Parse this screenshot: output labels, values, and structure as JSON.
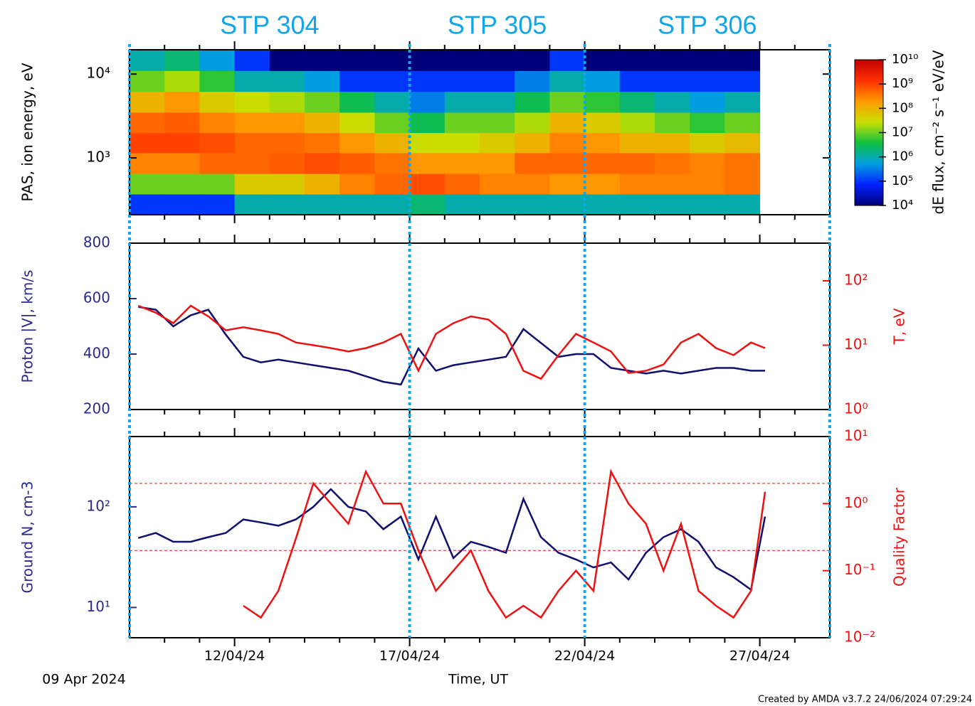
{
  "time_axis": {
    "label": "Time, UT",
    "start_label": "09 Apr 2024",
    "xlim": [
      0,
      20
    ],
    "xticks": [
      {
        "value": 3,
        "label": "12/04/24"
      },
      {
        "value": 8,
        "label": "17/04/24"
      },
      {
        "value": 13,
        "label": "22/04/24"
      },
      {
        "value": 18,
        "label": "27/04/24"
      }
    ],
    "minor_xticks": [
      1,
      2,
      4,
      5,
      6,
      7,
      9,
      10,
      11,
      12,
      14,
      15,
      16,
      17,
      19
    ]
  },
  "intervals": [
    {
      "label": "STP 304",
      "start": 0,
      "end": 8
    },
    {
      "label": "STP 305",
      "start": 8,
      "end": 13
    },
    {
      "label": "STP 306",
      "start": 13,
      "end": 20
    }
  ],
  "interval_color": "#12a5e8",
  "footer": "Created by AMDA v3.7.2 24/06/2024 07:29:24",
  "chart_data": [
    {
      "type": "heatmap",
      "y_label": "PAS, ion energy, eV",
      "yscale": "log",
      "ylim": [
        210,
        19500
      ],
      "yticks": [
        {
          "value": 1000,
          "label": "10³"
        },
        {
          "value": 10000,
          "label": "10⁴"
        }
      ],
      "time_bins": [
        0,
        1,
        2,
        3,
        4,
        5,
        6,
        7,
        8,
        9,
        10,
        11,
        12,
        13,
        14,
        15,
        16,
        17,
        18
      ],
      "energy_bins": [
        210,
        370,
        650,
        1150,
        2000,
        3500,
        6200,
        11000,
        19500
      ],
      "values": [
        [
          100000.0,
          10000000.0,
          300000000.0,
          1000000000.0,
          500000000.0,
          100000000.0,
          10000000.0,
          1000000.0
        ],
        [
          100000.0,
          10000000.0,
          300000000.0,
          1000000000.0,
          600000000.0,
          200000000.0,
          20000000.0,
          2000000.0
        ],
        [
          100000.0,
          10000000.0,
          500000000.0,
          800000000.0,
          300000000.0,
          50000000.0,
          5000000.0,
          500000.0
        ],
        [
          1000000.0,
          50000000.0,
          500000000.0,
          500000000.0,
          200000000.0,
          30000000.0,
          1000000.0,
          100000.0
        ],
        [
          1000000.0,
          50000000.0,
          600000000.0,
          500000000.0,
          200000000.0,
          20000000.0,
          1000000.0,
          10000.0
        ],
        [
          1000000.0,
          100000000.0,
          800000000.0,
          400000000.0,
          100000000.0,
          10000000.0,
          500000.0,
          10000.0
        ],
        [
          1000000.0,
          300000000.0,
          600000000.0,
          200000000.0,
          30000000.0,
          3000000.0,
          100000.0,
          10000.0
        ],
        [
          1000000.0,
          500000000.0,
          400000000.0,
          100000000.0,
          10000000.0,
          1000000.0,
          100000.0,
          10000.0
        ],
        [
          2000000.0,
          800000000.0,
          200000000.0,
          30000000.0,
          3000000.0,
          300000.0,
          100000.0,
          10000.0
        ],
        [
          1000000.0,
          500000000.0,
          200000000.0,
          30000000.0,
          10000000.0,
          1000000.0,
          100000.0,
          10000.0
        ],
        [
          1000000.0,
          300000000.0,
          200000000.0,
          50000000.0,
          10000000.0,
          1000000.0,
          100000.0,
          10000.0
        ],
        [
          1000000.0,
          300000000.0,
          500000000.0,
          100000000.0,
          20000000.0,
          3000000.0,
          300000.0,
          10000.0
        ],
        [
          1000000.0,
          200000000.0,
          500000000.0,
          300000000.0,
          100000000.0,
          10000000.0,
          1000000.0,
          100000.0
        ],
        [
          1000000.0,
          200000000.0,
          500000000.0,
          200000000.0,
          50000000.0,
          5000000.0,
          500000.0,
          10000.0
        ],
        [
          1000000.0,
          300000000.0,
          500000000.0,
          100000000.0,
          20000000.0,
          2000000.0,
          100000.0,
          10000.0
        ],
        [
          1000000.0,
          300000000.0,
          400000000.0,
          100000000.0,
          10000000.0,
          1000000.0,
          100000.0,
          10000.0
        ],
        [
          1000000.0,
          300000000.0,
          300000000.0,
          50000000.0,
          5000000.0,
          500000.0,
          100000.0,
          10000.0
        ],
        [
          1000000.0,
          400000000.0,
          400000000.0,
          80000000.0,
          10000000.0,
          1000000.0,
          100000.0,
          10000.0
        ]
      ],
      "colorbar_label": "dE flux, cm⁻² s⁻¹ eV/eV",
      "clim": [
        10000,
        10000000000
      ],
      "cticks": [
        {
          "value": 10000,
          "label": "10⁴"
        },
        {
          "value": 100000,
          "label": "10⁵"
        },
        {
          "value": 1000000,
          "label": "10⁶"
        },
        {
          "value": 10000000,
          "label": "10⁷"
        },
        {
          "value": 100000000,
          "label": "10⁸"
        },
        {
          "value": 1000000000,
          "label": "10⁹"
        },
        {
          "value": 10000000000,
          "label": "10¹⁰"
        }
      ],
      "colormap": [
        "#00007a",
        "#0020ff",
        "#00a0e0",
        "#10c040",
        "#c8e000",
        "#ff9a00",
        "#ff3000",
        "#c00000"
      ]
    },
    {
      "type": "line",
      "y_label": "Proton |V|, km/s",
      "y2_label": "T, eV",
      "yscale": "linear",
      "y2scale": "log",
      "ylim": [
        200,
        800
      ],
      "yticks": [
        200,
        400,
        600,
        800
      ],
      "y2lim": [
        1,
        385
      ],
      "y2ticks": [
        {
          "value": 1,
          "label": "10⁰"
        },
        {
          "value": 10,
          "label": "10¹"
        },
        {
          "value": 100,
          "label": "10²"
        }
      ],
      "left_color": "#2a2a8a",
      "right_color": "#ee1111",
      "x": [
        0.25,
        0.75,
        1.25,
        1.75,
        2.25,
        2.75,
        3.25,
        3.75,
        4.25,
        4.75,
        5.25,
        5.75,
        6.25,
        6.75,
        7.25,
        7.75,
        8.25,
        8.75,
        9.25,
        9.75,
        10.25,
        10.75,
        11.25,
        11.75,
        12.25,
        12.75,
        13.25,
        13.75,
        14.25,
        14.75,
        15.25,
        15.75,
        16.25,
        16.75,
        17.25,
        17.75,
        18.15
      ],
      "series": [
        {
          "color": "#10106e",
          "values": [
            570,
            560,
            500,
            540,
            560,
            470,
            390,
            370,
            380,
            370,
            360,
            350,
            340,
            320,
            300,
            290,
            420,
            340,
            360,
            370,
            380,
            390,
            490,
            440,
            390,
            400,
            400,
            350,
            340,
            330,
            340,
            330,
            340,
            350,
            350,
            340,
            340
          ]
        },
        {
          "color": "#ee1111",
          "axis": "y2",
          "values": [
            41,
            32,
            22,
            41,
            28,
            17,
            19,
            17,
            15,
            11,
            10,
            9,
            8,
            9,
            11,
            15,
            4,
            15,
            22,
            28,
            25,
            15,
            4,
            3,
            7,
            15,
            11,
            8,
            3.7,
            4,
            5,
            11,
            15,
            9,
            7,
            11,
            9
          ]
        }
      ]
    },
    {
      "type": "line",
      "y_label": "Ground N, cm-3",
      "y2_label": "Quality Factor",
      "yscale": "log",
      "y2scale": "log",
      "ylim": [
        5,
        500
      ],
      "yticks": [
        {
          "value": 10,
          "label": "10¹"
        },
        {
          "value": 100,
          "label": "10²"
        }
      ],
      "y2lim": [
        0.01,
        10
      ],
      "y2ticks": [
        {
          "value": 0.01,
          "label": "10⁻²"
        },
        {
          "value": 0.1,
          "label": "10⁻¹"
        },
        {
          "value": 1,
          "label": "10⁰"
        },
        {
          "value": 10,
          "label": "10¹"
        }
      ],
      "y2_hlines": [
        2,
        0.2
      ],
      "left_color": "#2a2a8a",
      "right_color": "#ee1111",
      "x": [
        0.25,
        0.75,
        1.25,
        1.75,
        2.25,
        2.75,
        3.25,
        3.75,
        4.25,
        4.75,
        5.25,
        5.75,
        6.25,
        6.75,
        7.25,
        7.75,
        8.25,
        8.75,
        9.25,
        9.75,
        10.25,
        10.75,
        11.25,
        11.75,
        12.25,
        12.75,
        13.25,
        13.75,
        14.25,
        14.75,
        15.25,
        15.75,
        16.25,
        16.75,
        17.25,
        17.75,
        18.15
      ],
      "series": [
        {
          "color": "#10106e",
          "values": [
            49,
            55,
            45,
            45,
            50,
            55,
            75,
            70,
            65,
            75,
            100,
            150,
            100,
            90,
            60,
            80,
            30,
            80,
            31,
            45,
            40,
            35,
            120,
            50,
            35,
            30,
            25,
            28,
            19,
            35,
            50,
            60,
            45,
            25,
            20,
            15,
            80
          ]
        },
        {
          "color": "#ee1111",
          "axis": "y2",
          "values": [
            null,
            null,
            null,
            null,
            null,
            null,
            0.03,
            0.02,
            0.05,
            0.3,
            2,
            1,
            0.5,
            3,
            1,
            1,
            0.2,
            0.05,
            0.1,
            0.2,
            0.05,
            0.02,
            0.03,
            0.02,
            0.05,
            0.1,
            0.05,
            3,
            1,
            0.5,
            0.1,
            0.5,
            0.05,
            0.03,
            0.02,
            0.05,
            1.5
          ]
        }
      ]
    }
  ]
}
